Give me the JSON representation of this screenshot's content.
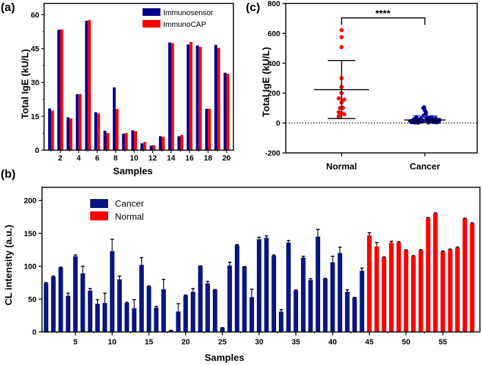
{
  "colors": {
    "blue": "#00008B",
    "blue_b": "#0A1580",
    "red": "#FF0000",
    "axis": "#000000"
  },
  "chart_data": [
    {
      "id": "a",
      "panel_label": "(a)",
      "type": "bar",
      "title": "",
      "xlabel": "Samples",
      "ylabel": "Total IgE (kU/L)",
      "ylim": [
        0,
        65
      ],
      "yticks": [
        0,
        15,
        30,
        45,
        60
      ],
      "xticks": [
        2,
        4,
        6,
        8,
        10,
        12,
        14,
        16,
        18,
        20
      ],
      "legend_position": "top-right",
      "categories": [
        1,
        2,
        3,
        4,
        5,
        6,
        7,
        8,
        9,
        10,
        11,
        12,
        13,
        14,
        15,
        16,
        17,
        18,
        19,
        20
      ],
      "series": [
        {
          "name": "Immunosensor",
          "color_key": "blue",
          "values": [
            18.5,
            53.3,
            14.6,
            24.8,
            57.3,
            16.8,
            8.6,
            27.8,
            7.3,
            8.8,
            3.0,
            2.0,
            6.2,
            47.7,
            6.2,
            46.8,
            46.4,
            18.3,
            46.6,
            34.3
          ]
        },
        {
          "name": "ImmunoCAP",
          "color_key": "red",
          "values": [
            17.5,
            53.5,
            14.0,
            24.8,
            57.6,
            16.3,
            7.6,
            18.2,
            7.6,
            8.4,
            3.6,
            2.2,
            5.9,
            47.4,
            6.7,
            47.9,
            45.8,
            18.3,
            45.3,
            33.8
          ]
        }
      ]
    },
    {
      "id": "c",
      "panel_label": "(c)",
      "type": "scatter",
      "title": "",
      "xlabel": "",
      "ylabel": "Total IgE (kU/L)",
      "ylim": [
        -200,
        800
      ],
      "yticks": [
        -200,
        0,
        200,
        400,
        600,
        800
      ],
      "categories": [
        "Normal",
        "Cancer"
      ],
      "reference_line": 0,
      "significance": "****",
      "groups": [
        {
          "name": "Normal",
          "color_key": "red",
          "mean": 223,
          "sd_upper": 418,
          "sd_lower": 30,
          "points": [
            [
              0,
              622
            ],
            [
              0,
              574
            ],
            [
              0,
              508
            ],
            [
              0,
              300
            ],
            [
              0,
              242
            ],
            [
              0,
              200
            ],
            [
              -0.08,
              165
            ],
            [
              0.08,
              157
            ],
            [
              0,
              138
            ],
            [
              -0.04,
              100
            ],
            [
              0.04,
              102
            ],
            [
              -0.08,
              72
            ],
            [
              0,
              67
            ],
            [
              0.08,
              58
            ],
            [
              -0.08,
              45
            ]
          ]
        },
        {
          "name": "Cancer",
          "color_key": "blue",
          "mean": 20,
          "sd_upper": 47,
          "sd_lower": 5,
          "points": [
            [
              -0.38,
              12
            ],
            [
              -0.35,
              5
            ],
            [
              -0.32,
              15
            ],
            [
              -0.3,
              8
            ],
            [
              -0.28,
              25
            ],
            [
              -0.26,
              3
            ],
            [
              -0.24,
              18
            ],
            [
              -0.22,
              40
            ],
            [
              -0.2,
              10
            ],
            [
              -0.18,
              2
            ],
            [
              -0.16,
              22
            ],
            [
              -0.14,
              6
            ],
            [
              -0.12,
              14
            ],
            [
              -0.1,
              30
            ],
            [
              -0.08,
              9
            ],
            [
              -0.06,
              18
            ],
            [
              -0.04,
              100
            ],
            [
              -0.02,
              105
            ],
            [
              0.0,
              85
            ],
            [
              0.02,
              60
            ],
            [
              0.03,
              70
            ],
            [
              0.04,
              40
            ],
            [
              -0.03,
              50
            ],
            [
              0.05,
              25
            ],
            [
              0.07,
              12
            ],
            [
              0.09,
              4
            ],
            [
              0.1,
              20
            ],
            [
              0.12,
              35
            ],
            [
              0.14,
              8
            ],
            [
              0.16,
              18
            ],
            [
              0.18,
              40
            ],
            [
              0.2,
              28
            ],
            [
              0.22,
              6
            ],
            [
              0.24,
              15
            ],
            [
              0.26,
              10
            ],
            [
              0.28,
              30
            ],
            [
              0.3,
              4
            ],
            [
              0.32,
              22
            ],
            [
              0.34,
              12
            ],
            [
              0.36,
              8
            ],
            [
              0.38,
              20
            ]
          ]
        }
      ]
    },
    {
      "id": "b",
      "panel_label": "(b)",
      "type": "bar",
      "title": "",
      "xlabel": "Samples",
      "ylabel": "CL intensity (a.u.)",
      "ylim": [
        0,
        220
      ],
      "yticks": [
        0,
        50,
        100,
        150,
        200
      ],
      "xticks": [
        5,
        10,
        15,
        20,
        25,
        30,
        35,
        40,
        45,
        50,
        55
      ],
      "legend_position": "top-left",
      "legend": [
        {
          "name": "Cancer",
          "color_key": "blue_b"
        },
        {
          "name": "Normal",
          "color_key": "red"
        }
      ],
      "samples": [
        {
          "x": 1,
          "v": 74,
          "e": 1,
          "g": "Cancer"
        },
        {
          "x": 2,
          "v": 84,
          "e": 1,
          "g": "Cancer"
        },
        {
          "x": 3,
          "v": 98,
          "e": 0.5,
          "g": "Cancer"
        },
        {
          "x": 4,
          "v": 55,
          "e": 4,
          "g": "Cancer"
        },
        {
          "x": 5,
          "v": 115,
          "e": 2,
          "g": "Cancer"
        },
        {
          "x": 6,
          "v": 89,
          "e": 11,
          "g": "Cancer"
        },
        {
          "x": 7,
          "v": 63,
          "e": 3,
          "g": "Cancer"
        },
        {
          "x": 8,
          "v": 43,
          "e": 6,
          "g": "Cancer"
        },
        {
          "x": 9,
          "v": 44,
          "e": 15,
          "g": "Cancer"
        },
        {
          "x": 10,
          "v": 123,
          "e": 18,
          "g": "Cancer"
        },
        {
          "x": 11,
          "v": 80,
          "e": 5,
          "g": "Cancer"
        },
        {
          "x": 12,
          "v": 44,
          "e": 1,
          "g": "Cancer"
        },
        {
          "x": 13,
          "v": 36,
          "e": 13,
          "g": "Cancer"
        },
        {
          "x": 14,
          "v": 102,
          "e": 11,
          "g": "Cancer"
        },
        {
          "x": 15,
          "v": 69,
          "e": 1,
          "g": "Cancer"
        },
        {
          "x": 16,
          "v": 37,
          "e": 2,
          "g": "Cancer"
        },
        {
          "x": 17,
          "v": 65,
          "e": 15,
          "g": "Cancer"
        },
        {
          "x": 18,
          "v": 2,
          "e": 0.5,
          "g": "Cancer"
        },
        {
          "x": 19,
          "v": 31,
          "e": 12,
          "g": "Cancer"
        },
        {
          "x": 20,
          "v": 55,
          "e": 1,
          "g": "Cancer"
        },
        {
          "x": 21,
          "v": 61,
          "e": 5,
          "g": "Cancer"
        },
        {
          "x": 22,
          "v": 100,
          "e": 0.5,
          "g": "Cancer"
        },
        {
          "x": 23,
          "v": 74,
          "e": 3,
          "g": "Cancer"
        },
        {
          "x": 24,
          "v": 64,
          "e": 0.5,
          "g": "Cancer"
        },
        {
          "x": 25,
          "v": 6,
          "e": 0.5,
          "g": "Cancer"
        },
        {
          "x": 26,
          "v": 101,
          "e": 5,
          "g": "Cancer"
        },
        {
          "x": 27,
          "v": 132,
          "e": 1,
          "g": "Cancer"
        },
        {
          "x": 28,
          "v": 99,
          "e": 0.5,
          "g": "Cancer"
        },
        {
          "x": 29,
          "v": 53,
          "e": 12,
          "g": "Cancer"
        },
        {
          "x": 30,
          "v": 141,
          "e": 3,
          "g": "Cancer"
        },
        {
          "x": 31,
          "v": 143,
          "e": 3,
          "g": "Cancer"
        },
        {
          "x": 32,
          "v": 116,
          "e": 1,
          "g": "Cancer"
        },
        {
          "x": 33,
          "v": 31,
          "e": 3,
          "g": "Cancer"
        },
        {
          "x": 34,
          "v": 136,
          "e": 3,
          "g": "Cancer"
        },
        {
          "x": 35,
          "v": 63,
          "e": 1,
          "g": "Cancer"
        },
        {
          "x": 36,
          "v": 113,
          "e": 2,
          "g": "Cancer"
        },
        {
          "x": 37,
          "v": 79,
          "e": 2,
          "g": "Cancer"
        },
        {
          "x": 38,
          "v": 145,
          "e": 11,
          "g": "Cancer"
        },
        {
          "x": 39,
          "v": 81,
          "e": 0.5,
          "g": "Cancer"
        },
        {
          "x": 40,
          "v": 106,
          "e": 9,
          "g": "Cancer"
        },
        {
          "x": 41,
          "v": 120,
          "e": 9,
          "g": "Cancer"
        },
        {
          "x": 42,
          "v": 61,
          "e": 3,
          "g": "Cancer"
        },
        {
          "x": 43,
          "v": 52,
          "e": 0.5,
          "g": "Cancer"
        },
        {
          "x": 44,
          "v": 93,
          "e": 4,
          "g": "Cancer"
        },
        {
          "x": 45,
          "v": 147,
          "e": 4,
          "g": "Normal"
        },
        {
          "x": 46,
          "v": 130,
          "e": 6,
          "g": "Normal"
        },
        {
          "x": 47,
          "v": 113,
          "e": 1,
          "g": "Normal"
        },
        {
          "x": 48,
          "v": 136,
          "e": 2,
          "g": "Normal"
        },
        {
          "x": 49,
          "v": 136,
          "e": 1,
          "g": "Normal"
        },
        {
          "x": 50,
          "v": 124,
          "e": 1,
          "g": "Normal"
        },
        {
          "x": 51,
          "v": 115,
          "e": 1,
          "g": "Normal"
        },
        {
          "x": 52,
          "v": 124,
          "e": 1,
          "g": "Normal"
        },
        {
          "x": 53,
          "v": 173,
          "e": 1,
          "g": "Normal"
        },
        {
          "x": 54,
          "v": 180,
          "e": 1,
          "g": "Normal"
        },
        {
          "x": 55,
          "v": 122,
          "e": 1,
          "g": "Normal"
        },
        {
          "x": 56,
          "v": 125,
          "e": 1,
          "g": "Normal"
        },
        {
          "x": 57,
          "v": 128,
          "e": 1,
          "g": "Normal"
        },
        {
          "x": 58,
          "v": 172,
          "e": 1,
          "g": "Normal"
        },
        {
          "x": 59,
          "v": 165,
          "e": 1,
          "g": "Normal"
        }
      ]
    }
  ]
}
